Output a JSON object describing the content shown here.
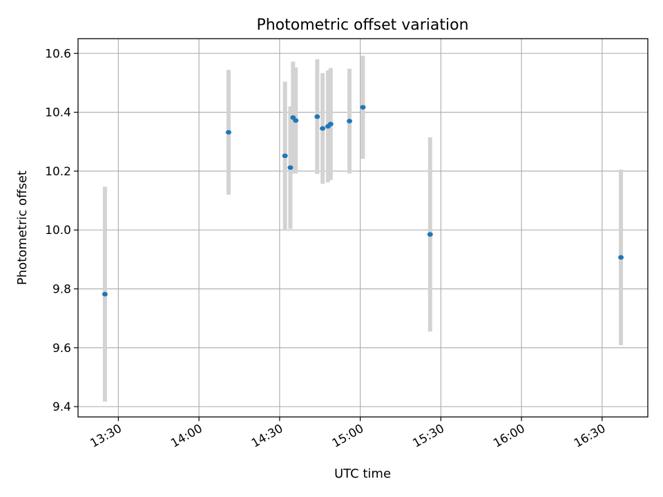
{
  "chart_data": {
    "type": "scatter",
    "title": "Photometric offset variation",
    "xlabel": "UTC time",
    "ylabel": "Photometric offset",
    "xlim": [
      "13:15",
      "16:47"
    ],
    "ylim": [
      9.365,
      10.65
    ],
    "x_ticks": [
      "13:30",
      "14:00",
      "14:30",
      "15:00",
      "15:30",
      "16:00",
      "16:30"
    ],
    "y_ticks": [
      "9.4",
      "9.6",
      "9.8",
      "10.0",
      "10.2",
      "10.4",
      "10.6"
    ],
    "grid": true,
    "marker_color": "#1f77b4",
    "errorbar_color": "#d3d3d3",
    "points": [
      {
        "x": "13:25",
        "y": 9.782,
        "yerr": 0.365
      },
      {
        "x": "14:11",
        "y": 10.332,
        "yerr": 0.212
      },
      {
        "x": "14:32",
        "y": 10.252,
        "yerr": 0.252
      },
      {
        "x": "14:34",
        "y": 10.212,
        "yerr": 0.208
      },
      {
        "x": "14:35",
        "y": 10.382,
        "yerr": 0.19
      },
      {
        "x": "14:36",
        "y": 10.372,
        "yerr": 0.18
      },
      {
        "x": "14:44",
        "y": 10.385,
        "yerr": 0.195
      },
      {
        "x": "14:46",
        "y": 10.345,
        "yerr": 0.188
      },
      {
        "x": "14:48",
        "y": 10.352,
        "yerr": 0.19
      },
      {
        "x": "14:49",
        "y": 10.36,
        "yerr": 0.19
      },
      {
        "x": "14:56",
        "y": 10.37,
        "yerr": 0.178
      },
      {
        "x": "15:01",
        "y": 10.417,
        "yerr": 0.175
      },
      {
        "x": "15:26",
        "y": 9.985,
        "yerr": 0.33
      },
      {
        "x": "16:37",
        "y": 9.907,
        "yerr": 0.298
      }
    ]
  }
}
